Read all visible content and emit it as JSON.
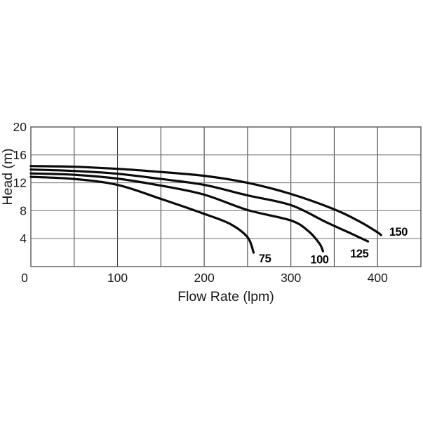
{
  "chart_data": {
    "type": "line",
    "title": "",
    "xlabel": "Flow Rate (lpm)",
    "ylabel": "Head (m)",
    "xlim": [
      0,
      450
    ],
    "ylim": [
      0,
      20
    ],
    "x_grid_step": 50,
    "y_grid_step": 4,
    "grid": true,
    "legend_position": "inline-labels-at-curve-ends",
    "x_ticks": [
      "0",
      "100",
      "200",
      "300",
      "400"
    ],
    "x_tick_values": [
      0,
      100,
      200,
      300,
      400
    ],
    "y_ticks": [
      "20",
      "16",
      "12",
      "8",
      "4"
    ],
    "y_tick_values": [
      20,
      16,
      12,
      8,
      4
    ],
    "series": [
      {
        "name": "75",
        "points": [
          [
            0,
            12.85
          ],
          [
            50,
            12.55
          ],
          [
            100,
            11.7
          ],
          [
            150,
            9.7
          ],
          [
            200,
            7.55
          ],
          [
            230,
            6.1
          ],
          [
            250,
            4.2
          ],
          [
            257,
            2.0
          ]
        ],
        "label_at": [
          270,
          1.15
        ]
      },
      {
        "name": "100",
        "points": [
          [
            0,
            13.35
          ],
          [
            50,
            13.15
          ],
          [
            100,
            12.6
          ],
          [
            150,
            11.6
          ],
          [
            200,
            10.3
          ],
          [
            250,
            8.1
          ],
          [
            300,
            6.6
          ],
          [
            320,
            5.1
          ],
          [
            333,
            3.3
          ],
          [
            337,
            2.2
          ]
        ],
        "label_at": [
          333,
          1.0
        ]
      },
      {
        "name": "125",
        "points": [
          [
            0,
            13.9
          ],
          [
            50,
            13.7
          ],
          [
            100,
            13.3
          ],
          [
            150,
            12.55
          ],
          [
            200,
            11.7
          ],
          [
            250,
            10.2
          ],
          [
            300,
            8.8
          ],
          [
            340,
            6.4
          ],
          [
            370,
            4.7
          ],
          [
            389,
            3.6
          ]
        ],
        "label_at": [
          379,
          1.85
        ]
      },
      {
        "name": "150",
        "points": [
          [
            0,
            14.4
          ],
          [
            50,
            14.3
          ],
          [
            100,
            14.0
          ],
          [
            150,
            13.55
          ],
          [
            200,
            13.0
          ],
          [
            250,
            12.0
          ],
          [
            300,
            10.4
          ],
          [
            350,
            8.2
          ],
          [
            380,
            6.4
          ],
          [
            400,
            4.9
          ],
          [
            404,
            4.5
          ]
        ],
        "label_at": [
          424,
          5.0
        ]
      }
    ],
    "colors": {
      "background": "#ffffff",
      "curve": "#0a0a0a",
      "grid_horizontal": "#7d7d7d",
      "grid_vertical": "#454545",
      "plot_border": "#555555",
      "text": "#1a1a1a"
    }
  }
}
